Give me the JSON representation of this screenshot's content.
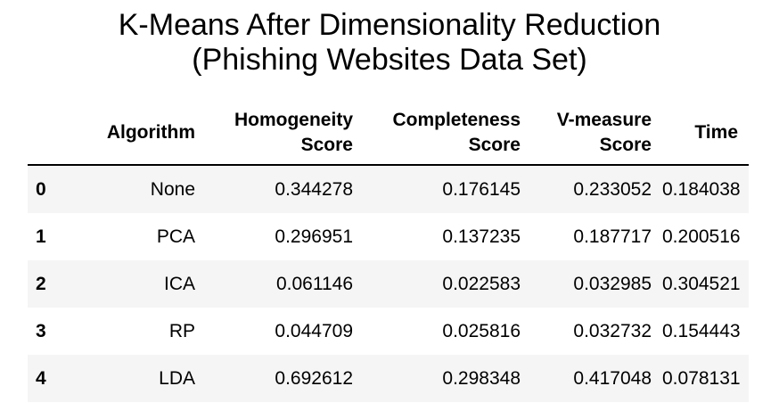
{
  "title": {
    "line1": "K-Means After Dimensionality Reduction",
    "line2": "(Phishing Websites Data Set)"
  },
  "table": {
    "columns": {
      "index": "",
      "algorithm": "Algorithm",
      "homogeneity": "Homogeneity Score",
      "completeness": "Completeness Score",
      "v_measure": "V-measure Score",
      "time": "Time"
    },
    "rows": [
      {
        "index": "0",
        "algorithm": "None",
        "homogeneity": "0.344278",
        "completeness": "0.176145",
        "v_measure": "0.233052",
        "time": "0.184038"
      },
      {
        "index": "1",
        "algorithm": "PCA",
        "homogeneity": "0.296951",
        "completeness": "0.137235",
        "v_measure": "0.187717",
        "time": "0.200516"
      },
      {
        "index": "2",
        "algorithm": "ICA",
        "homogeneity": "0.061146",
        "completeness": "0.022583",
        "v_measure": "0.032985",
        "time": "0.304521"
      },
      {
        "index": "3",
        "algorithm": "RP",
        "homogeneity": "0.044709",
        "completeness": "0.025816",
        "v_measure": "0.032732",
        "time": "0.154443"
      },
      {
        "index": "4",
        "algorithm": "LDA",
        "homogeneity": "0.692612",
        "completeness": "0.298348",
        "v_measure": "0.417048",
        "time": "0.078131"
      }
    ]
  }
}
